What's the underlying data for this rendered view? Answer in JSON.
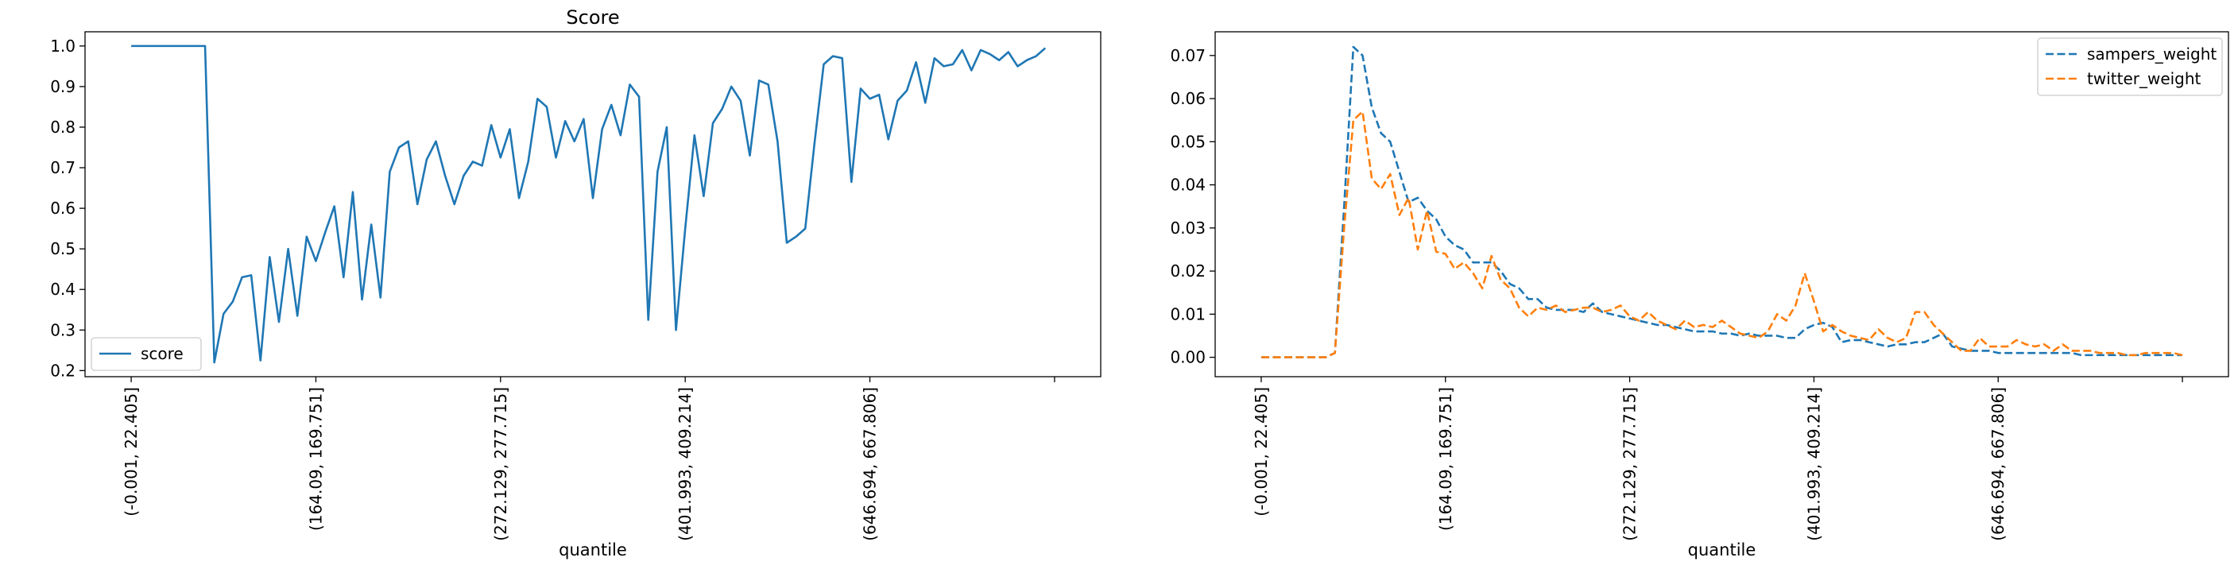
{
  "colors": {
    "score": "#1f77b4",
    "sampers_weight": "#1f77b4",
    "twitter_weight": "#ff7f0e",
    "axes": "#000000",
    "background": "#ffffff"
  },
  "chart_data": [
    {
      "type": "line",
      "title": "Score",
      "xlabel": "quantile",
      "ylabel": "",
      "grid": false,
      "legend": "lower-left",
      "x_tick_labels": [
        "(-0.001, 22.405]",
        "(164.09, 169.751]",
        "(272.129, 277.715]",
        "(401.993, 409.214]",
        "(646.694, 667.806]",
        ""
      ],
      "x_tick_positions": [
        0,
        20,
        40,
        60,
        80,
        100
      ],
      "xlim": [
        -5,
        105
      ],
      "yticks": [
        "0.2",
        "0.3",
        "0.4",
        "0.5",
        "0.6",
        "0.7",
        "0.8",
        "0.9",
        "1.0"
      ],
      "ylim": [
        0.185,
        1.035
      ],
      "series": [
        {
          "name": "score",
          "style": "solid",
          "values": [
            1.0,
            1.0,
            1.0,
            1.0,
            1.0,
            1.0,
            1.0,
            1.0,
            1.0,
            0.22,
            0.34,
            0.37,
            0.43,
            0.435,
            0.225,
            0.48,
            0.32,
            0.5,
            0.335,
            0.53,
            0.47,
            0.54,
            0.605,
            0.43,
            0.64,
            0.375,
            0.56,
            0.38,
            0.69,
            0.75,
            0.765,
            0.61,
            0.72,
            0.765,
            0.68,
            0.61,
            0.68,
            0.715,
            0.705,
            0.805,
            0.725,
            0.795,
            0.625,
            0.715,
            0.87,
            0.85,
            0.725,
            0.815,
            0.765,
            0.82,
            0.625,
            0.795,
            0.855,
            0.78,
            0.905,
            0.875,
            0.325,
            0.69,
            0.8,
            0.3,
            0.55,
            0.78,
            0.63,
            0.81,
            0.845,
            0.9,
            0.865,
            0.73,
            0.915,
            0.905,
            0.765,
            0.515,
            0.53,
            0.55,
            0.76,
            0.955,
            0.975,
            0.97,
            0.665,
            0.895,
            0.87,
            0.88,
            0.77,
            0.865,
            0.89,
            0.96,
            0.86,
            0.97,
            0.95,
            0.955,
            0.99,
            0.94,
            0.99,
            0.98,
            0.965,
            0.985,
            0.95,
            0.965,
            0.975,
            0.995
          ]
        }
      ]
    },
    {
      "type": "line",
      "title": "",
      "xlabel": "quantile",
      "ylabel": "",
      "grid": false,
      "legend": "upper-right",
      "x_tick_labels": [
        "(-0.001, 22.405]",
        "(164.09, 169.751]",
        "(272.129, 277.715]",
        "(401.993, 409.214]",
        "(646.694, 667.806]",
        ""
      ],
      "x_tick_positions": [
        0,
        20,
        40,
        60,
        80,
        100
      ],
      "xlim": [
        -5,
        105
      ],
      "yticks": [
        "0.00",
        "0.01",
        "0.02",
        "0.03",
        "0.04",
        "0.05",
        "0.06",
        "0.07"
      ],
      "ylim": [
        -0.0045,
        0.0755
      ],
      "series": [
        {
          "name": "sampers_weight",
          "style": "dashed",
          "values": [
            0,
            0,
            0,
            0,
            0,
            0,
            0,
            0,
            0.001,
            0.035,
            0.072,
            0.07,
            0.058,
            0.052,
            0.05,
            0.043,
            0.036,
            0.037,
            0.034,
            0.032,
            0.028,
            0.026,
            0.025,
            0.022,
            0.022,
            0.022,
            0.02,
            0.017,
            0.016,
            0.0135,
            0.0135,
            0.0115,
            0.011,
            0.011,
            0.011,
            0.0105,
            0.0125,
            0.0105,
            0.01,
            0.0095,
            0.009,
            0.0085,
            0.008,
            0.0075,
            0.0075,
            0.007,
            0.0065,
            0.006,
            0.006,
            0.006,
            0.0055,
            0.0055,
            0.005,
            0.0055,
            0.005,
            0.005,
            0.005,
            0.0045,
            0.0045,
            0.0065,
            0.0075,
            0.008,
            0.007,
            0.0035,
            0.004,
            0.004,
            0.0035,
            0.003,
            0.0025,
            0.003,
            0.003,
            0.0035,
            0.0035,
            0.0045,
            0.0055,
            0.0025,
            0.002,
            0.0015,
            0.0015,
            0.0015,
            0.001,
            0.001,
            0.001,
            0.001,
            0.001,
            0.001,
            0.001,
            0.001,
            0.001,
            0.0005,
            0.0005,
            0.0005,
            0.0005,
            0.0005,
            0.0005,
            0.0005,
            0.0005,
            0.0005,
            0.0005,
            0.0005,
            0.0005
          ]
        },
        {
          "name": "twitter_weight",
          "style": "dashed",
          "values": [
            0,
            0,
            0,
            0,
            0,
            0,
            0,
            0,
            0.001,
            0.03,
            0.055,
            0.057,
            0.0415,
            0.039,
            0.0425,
            0.033,
            0.037,
            0.025,
            0.034,
            0.0245,
            0.024,
            0.0205,
            0.022,
            0.0195,
            0.016,
            0.0235,
            0.018,
            0.016,
            0.0115,
            0.0095,
            0.0115,
            0.011,
            0.012,
            0.0105,
            0.011,
            0.0115,
            0.0115,
            0.0105,
            0.011,
            0.012,
            0.0095,
            0.0085,
            0.0105,
            0.0085,
            0.0075,
            0.0065,
            0.0085,
            0.007,
            0.0075,
            0.007,
            0.0085,
            0.007,
            0.0055,
            0.005,
            0.0045,
            0.006,
            0.01,
            0.0085,
            0.012,
            0.0195,
            0.013,
            0.006,
            0.0075,
            0.006,
            0.005,
            0.0045,
            0.004,
            0.0065,
            0.0045,
            0.0035,
            0.0045,
            0.0105,
            0.0105,
            0.0075,
            0.0055,
            0.0035,
            0.0015,
            0.0015,
            0.0045,
            0.0025,
            0.0025,
            0.0025,
            0.004,
            0.003,
            0.0025,
            0.003,
            0.0015,
            0.003,
            0.0015,
            0.0015,
            0.0015,
            0.001,
            0.001,
            0.001,
            0.0005,
            0.0005,
            0.001,
            0.001,
            0.001,
            0.001,
            0.0005
          ]
        }
      ]
    }
  ]
}
